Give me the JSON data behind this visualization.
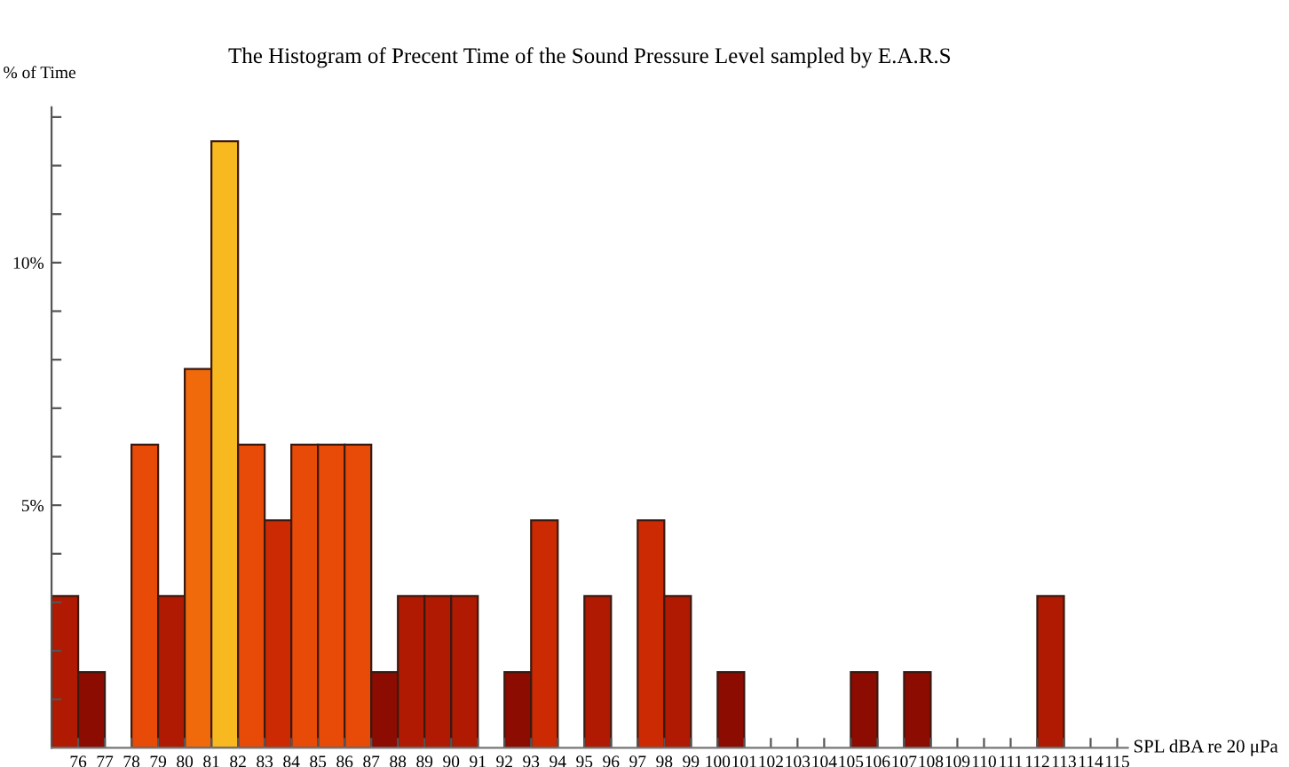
{
  "chart_data": {
    "type": "histogram",
    "title": "The Histogram of Precent Time of the Sound Pressure Level sampled by E.A.R.S",
    "xlabel": "SPL dBA re 20 μPa",
    "ylabel": "% of Time",
    "bins": [
      75,
      76,
      77,
      78,
      79,
      80,
      81,
      82,
      83,
      84,
      85,
      86,
      87,
      88,
      89,
      90,
      91,
      92,
      93,
      94,
      95,
      96,
      97,
      98,
      99,
      100,
      101,
      102,
      103,
      104,
      105,
      106,
      107,
      108,
      109,
      110,
      111,
      112,
      113,
      114,
      115
    ],
    "values": [
      3.13,
      1.56,
      0,
      6.25,
      3.13,
      7.81,
      12.5,
      6.25,
      4.69,
      6.25,
      6.25,
      6.25,
      1.56,
      3.13,
      3.13,
      3.13,
      0,
      1.56,
      4.69,
      0,
      3.13,
      0,
      4.69,
      3.13,
      0,
      1.56,
      0,
      0,
      0,
      0,
      1.56,
      0,
      1.56,
      0,
      0,
      0,
      0,
      3.13,
      0,
      0
    ],
    "colors": [
      "#b01a02",
      "#8c0c02",
      null,
      "#e84a08",
      "#b01a02",
      "#f06a0c",
      "#f8b820",
      "#e84a08",
      "#cc2a02",
      "#e84a08",
      "#e84a08",
      "#e84a08",
      "#8c0c02",
      "#b01a02",
      "#b01a02",
      "#b01a02",
      null,
      "#8c0c02",
      "#cc2a02",
      null,
      "#b01a02",
      null,
      "#cc2a02",
      "#b01a02",
      null,
      "#8c0c02",
      null,
      null,
      null,
      null,
      "#8c0c02",
      null,
      "#8c0c02",
      null,
      null,
      null,
      null,
      "#b01a02",
      null,
      null
    ],
    "xlim": [
      75,
      115.4
    ],
    "ylim": [
      0,
      13.2
    ],
    "xticks": [
      76,
      77,
      78,
      79,
      80,
      81,
      82,
      83,
      84,
      85,
      86,
      87,
      88,
      89,
      90,
      91,
      92,
      93,
      94,
      95,
      96,
      97,
      98,
      99,
      100,
      101,
      102,
      103,
      104,
      105,
      106,
      107,
      108,
      109,
      110,
      111,
      112,
      113,
      114,
      115
    ],
    "yticks": [
      {
        "value": 1,
        "label": null
      },
      {
        "value": 2,
        "label": null
      },
      {
        "value": 3,
        "label": null
      },
      {
        "value": 4,
        "label": null
      },
      {
        "value": 5,
        "label": "5%"
      },
      {
        "value": 6,
        "label": null
      },
      {
        "value": 7,
        "label": null
      },
      {
        "value": 8,
        "label": null
      },
      {
        "value": 9,
        "label": null
      },
      {
        "value": 10,
        "label": "10%"
      },
      {
        "value": 11,
        "label": null
      },
      {
        "value": 12,
        "label": null
      },
      {
        "value": 13,
        "label": null
      }
    ],
    "grid": false,
    "legend": false
  }
}
